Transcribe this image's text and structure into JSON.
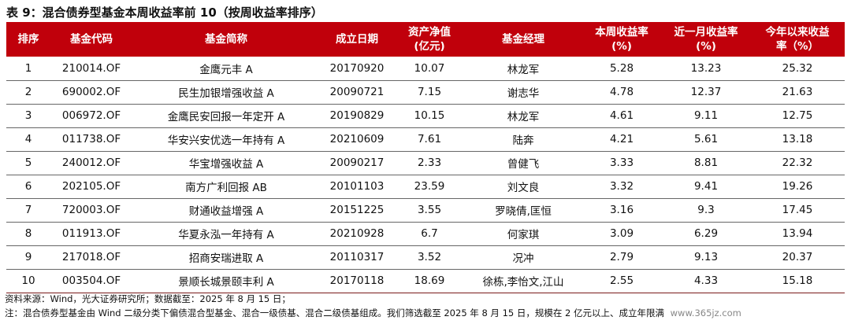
{
  "title": "表 9：混合债券型基金本周收益率前 10（按周收益率排序）",
  "table": {
    "headers": [
      "排序",
      "基金代码",
      "基金简称",
      "成立日期",
      "资产净值\n(亿元)",
      "基金经理",
      "本周收益率\n(%)",
      "近一月收益率\n(%)",
      "今年以来收益\n率（%）"
    ],
    "rows": [
      [
        "1",
        "210014.OF",
        "金鹰元丰 A",
        "20170920",
        "10.07",
        "林龙军",
        "5.28",
        "13.23",
        "25.32"
      ],
      [
        "2",
        "690002.OF",
        "民生加银增强收益 A",
        "20090721",
        "7.15",
        "谢志华",
        "4.78",
        "12.37",
        "21.63"
      ],
      [
        "3",
        "006972.OF",
        "金鹰民安回报一年定开 A",
        "20190829",
        "10.15",
        "林龙军",
        "4.61",
        "9.11",
        "12.75"
      ],
      [
        "4",
        "011738.OF",
        "华安兴安优选一年持有 A",
        "20210609",
        "7.61",
        "陆奔",
        "4.21",
        "5.61",
        "13.18"
      ],
      [
        "5",
        "240012.OF",
        "华宝增强收益 A",
        "20090217",
        "2.33",
        "曾健飞",
        "3.33",
        "8.81",
        "22.32"
      ],
      [
        "6",
        "202105.OF",
        "南方广利回报 AB",
        "20101103",
        "23.59",
        "刘文良",
        "3.32",
        "9.41",
        "19.26"
      ],
      [
        "7",
        "720003.OF",
        "财通收益增强 A",
        "20151225",
        "3.55",
        "罗晓倩,匡恒",
        "3.16",
        "9.3",
        "17.45"
      ],
      [
        "8",
        "011913.OF",
        "华夏永泓一年持有 A",
        "20210928",
        "6.7",
        "何家琪",
        "3.09",
        "6.29",
        "13.94"
      ],
      [
        "9",
        "217018.OF",
        "招商安瑞进取 A",
        "20110317",
        "3.52",
        "况冲",
        "2.79",
        "9.13",
        "20.37"
      ],
      [
        "10",
        "003504.OF",
        "景顺长城景颐丰利 A",
        "20170118",
        "18.69",
        "徐栋,李怡文,江山",
        "2.55",
        "4.33",
        "15.18"
      ]
    ]
  },
  "footnotes": {
    "source": "资料来源：Wind，光大证券研究所；数据截至：2025 年 8 月 15 日；",
    "note": "注：混合债券型基金由 Wind 二级分类下偏债混合型基金、混合一级债基、混合二级债基组成。我们筛选截至 2025 年 8 月 15 日，规模在 2 亿元以上、成立年限满"
  },
  "watermark": "www.365jz.com",
  "colors": {
    "header_bg": "#c0000b",
    "header_text": "#ffffff"
  }
}
